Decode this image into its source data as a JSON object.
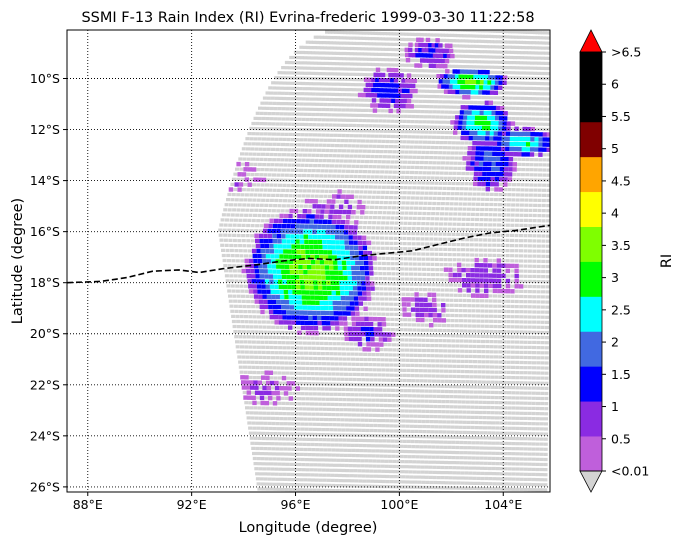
{
  "chart_data": {
    "type": "scatter",
    "title": "SSMI F-13 Rain Index (RI) Evrina-frederic 1999-03-30 11:22:58",
    "xlabel": "Longitude (degree)",
    "ylabel": "Latitude (degree)",
    "xlim": [
      87.2,
      105.8
    ],
    "ylim": [
      -26.2,
      -8.1
    ],
    "x_ticks": [
      {
        "value": 88,
        "label": "88°E"
      },
      {
        "value": 92,
        "label": "92°E"
      },
      {
        "value": 96,
        "label": "96°E"
      },
      {
        "value": 100,
        "label": "100°E"
      },
      {
        "value": 104,
        "label": "104°E"
      }
    ],
    "y_ticks": [
      {
        "value": -10,
        "label": "10°S"
      },
      {
        "value": -12,
        "label": "12°S"
      },
      {
        "value": -14,
        "label": "14°S"
      },
      {
        "value": -16,
        "label": "16°S"
      },
      {
        "value": -18,
        "label": "18°S"
      },
      {
        "value": -20,
        "label": "20°S"
      },
      {
        "value": -22,
        "label": "22°S"
      },
      {
        "value": -24,
        "label": "24°S"
      },
      {
        "value": -26,
        "label": "26°S"
      }
    ],
    "grid": true,
    "grid_style": "dotted",
    "colorbar": {
      "label": "RI",
      "tick_labels": [
        "<0.01",
        "0.5",
        "1",
        "1.5",
        "2",
        "2.5",
        "3",
        "3.5",
        "4",
        "4.5",
        "5",
        "5.5",
        "6",
        ">6.5"
      ],
      "bins": [
        {
          "color": "#bf5fdb"
        },
        {
          "color": "#8a2be2"
        },
        {
          "color": "#0000ff"
        },
        {
          "color": "#4169e1"
        },
        {
          "color": "#00ffff"
        },
        {
          "color": "#00ff00"
        },
        {
          "color": "#7fff00"
        },
        {
          "color": "#ffff00"
        },
        {
          "color": "#ffa500"
        },
        {
          "color": "#800000"
        },
        {
          "color": "#000000"
        },
        {
          "color": "#000000"
        }
      ],
      "under_color": "#d3d3d3",
      "over_color": "#ff0000"
    },
    "swath_color": "#d3d3d3",
    "track": {
      "style": "dashed",
      "color": "#000000",
      "points": [
        [
          87.2,
          -18.0
        ],
        [
          88.5,
          -17.95
        ],
        [
          89.5,
          -17.8
        ],
        [
          90.5,
          -17.55
        ],
        [
          91.5,
          -17.5
        ],
        [
          92.3,
          -17.6
        ],
        [
          93.2,
          -17.45
        ],
        [
          94.5,
          -17.3
        ],
        [
          95.5,
          -17.15
        ],
        [
          96.5,
          -17.05
        ],
        [
          97.5,
          -17.1
        ],
        [
          98.5,
          -16.95
        ],
        [
          99.5,
          -16.85
        ],
        [
          100.5,
          -16.75
        ],
        [
          101.5,
          -16.5
        ],
        [
          102.5,
          -16.25
        ],
        [
          103.5,
          -16.05
        ],
        [
          104.5,
          -15.95
        ],
        [
          105.8,
          -15.75
        ]
      ]
    },
    "rain_clusters": [
      {
        "lon": 96.6,
        "lat": -17.6,
        "rlon": 2.6,
        "rlat": 2.5,
        "peak": 3.2
      },
      {
        "lon": 102.8,
        "lat": -10.1,
        "rlon": 1.4,
        "rlat": 0.6,
        "peak": 3.0
      },
      {
        "lon": 103.2,
        "lat": -11.7,
        "rlon": 1.2,
        "rlat": 0.9,
        "peak": 2.6
      },
      {
        "lon": 104.8,
        "lat": -12.4,
        "rlon": 1.3,
        "rlat": 0.6,
        "peak": 2.4
      },
      {
        "lon": 103.5,
        "lat": -13.2,
        "rlon": 1.0,
        "rlat": 1.2,
        "peak": 1.6
      },
      {
        "lon": 101.2,
        "lat": -9.0,
        "rlon": 1.0,
        "rlat": 0.6,
        "peak": 1.2
      },
      {
        "lon": 99.6,
        "lat": -10.5,
        "rlon": 1.2,
        "rlat": 0.9,
        "peak": 1.2
      },
      {
        "lon": 103.3,
        "lat": -17.7,
        "rlon": 1.6,
        "rlat": 0.8,
        "peak": 0.8
      },
      {
        "lon": 98.8,
        "lat": -20.0,
        "rlon": 1.0,
        "rlat": 0.7,
        "peak": 1.0
      },
      {
        "lon": 94.8,
        "lat": -22.3,
        "rlon": 1.3,
        "rlat": 0.7,
        "peak": 0.5
      },
      {
        "lon": 101.0,
        "lat": -19.0,
        "rlon": 1.0,
        "rlat": 0.7,
        "peak": 0.7
      },
      {
        "lon": 97.5,
        "lat": -15.2,
        "rlon": 1.2,
        "rlat": 0.8,
        "peak": 0.6
      },
      {
        "lon": 94.0,
        "lat": -14.0,
        "rlon": 0.8,
        "rlat": 0.6,
        "peak": 0.4
      }
    ]
  }
}
